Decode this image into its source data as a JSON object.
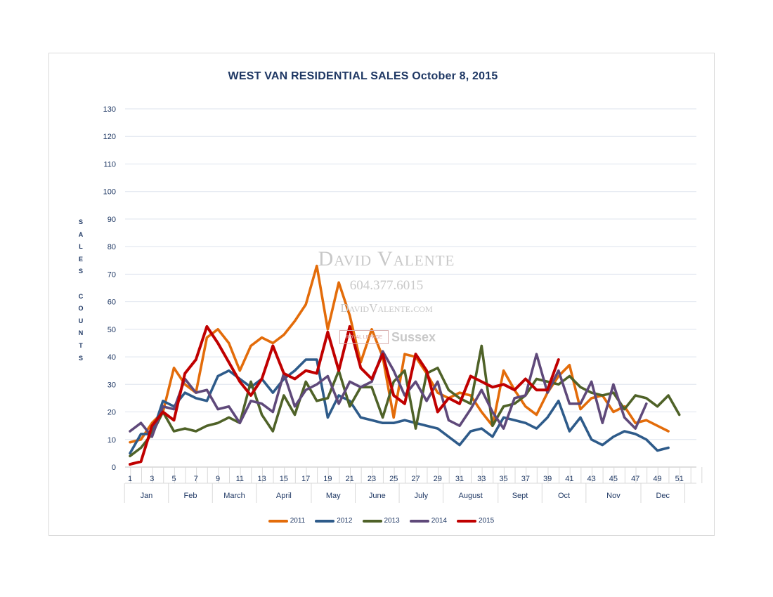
{
  "chart_data": {
    "type": "line",
    "title": "WEST VAN RESIDENTIAL  SALES  October 8, 2015",
    "ylabel_letters": [
      "S",
      "A",
      "L",
      "E",
      "S",
      "",
      "C",
      "O",
      "U",
      "N",
      "T",
      "S"
    ],
    "ylim": [
      0,
      130
    ],
    "y_ticks": [
      0,
      10,
      20,
      30,
      40,
      50,
      60,
      70,
      80,
      90,
      100,
      110,
      120,
      130
    ],
    "x_min": 1,
    "x_max": 53,
    "x_tick_labels": [
      "1",
      "3",
      "5",
      "7",
      "9",
      "11",
      "13",
      "15",
      "17",
      "19",
      "21",
      "23",
      "25",
      "27",
      "29",
      "31",
      "33",
      "35",
      "37",
      "39",
      "41",
      "43",
      "45",
      "47",
      "49",
      "51"
    ],
    "months": [
      {
        "label": "Jan",
        "start": 0.5,
        "end": 4.5
      },
      {
        "label": "Feb",
        "start": 4.5,
        "end": 8.5
      },
      {
        "label": "March",
        "start": 8.5,
        "end": 12.5
      },
      {
        "label": "April",
        "start": 12.5,
        "end": 17.5
      },
      {
        "label": "May",
        "start": 17.5,
        "end": 21.5
      },
      {
        "label": "June",
        "start": 21.5,
        "end": 25.5
      },
      {
        "label": "July",
        "start": 25.5,
        "end": 29.5
      },
      {
        "label": "August",
        "start": 29.5,
        "end": 34.5
      },
      {
        "label": "Sept",
        "start": 34.5,
        "end": 38.5
      },
      {
        "label": "Oct",
        "start": 38.5,
        "end": 42.5
      },
      {
        "label": "Nov",
        "start": 42.5,
        "end": 47.5
      },
      {
        "label": "Dec",
        "start": 47.5,
        "end": 51.5
      }
    ],
    "series": [
      {
        "name": "2011",
        "color": "#e36c0a",
        "values": [
          9,
          10,
          16,
          20,
          36,
          30,
          27,
          47,
          50,
          45,
          35,
          44,
          47,
          45,
          48,
          53,
          59,
          73,
          50,
          67,
          55,
          38,
          50,
          40,
          18,
          41,
          40,
          34,
          27,
          25,
          27,
          26,
          20,
          15,
          35,
          28,
          22,
          19,
          27,
          33,
          37,
          21,
          25,
          26,
          20,
          22,
          16,
          17,
          15,
          13
        ]
      },
      {
        "name": "2012",
        "color": "#2e5b8a",
        "values": [
          5,
          12,
          12,
          24,
          22,
          27,
          25,
          24,
          33,
          35,
          32,
          29,
          32,
          27,
          32,
          35,
          39,
          39,
          18,
          26,
          24,
          18,
          17,
          16,
          16,
          17,
          16,
          15,
          14,
          11,
          8,
          13,
          14,
          11,
          18,
          17,
          16,
          14,
          18,
          24,
          13,
          18,
          10,
          8,
          11,
          13,
          12,
          10,
          6,
          7
        ]
      },
      {
        "name": "2013",
        "color": "#4f6228",
        "values": [
          4,
          7,
          12,
          20,
          13,
          14,
          13,
          15,
          16,
          18,
          16,
          31,
          19,
          13,
          26,
          19,
          31,
          24,
          25,
          35,
          22,
          29,
          29,
          18,
          31,
          35,
          14,
          34,
          36,
          28,
          25,
          23,
          44,
          15,
          22,
          23,
          26,
          32,
          31,
          30,
          33,
          29,
          27,
          26,
          27,
          21,
          26,
          25,
          22,
          26,
          19
        ]
      },
      {
        "name": "2014",
        "color": "#5f497a",
        "values": [
          13,
          16,
          11,
          22,
          21,
          32,
          27,
          28,
          21,
          22,
          16,
          24,
          23,
          20,
          34,
          22,
          28,
          30,
          33,
          23,
          31,
          29,
          31,
          42,
          35,
          26,
          31,
          24,
          31,
          17,
          15,
          21,
          28,
          20,
          14,
          25,
          26,
          41,
          27,
          35,
          23,
          23,
          31,
          16,
          30,
          18,
          14,
          23
        ]
      },
      {
        "name": "2015",
        "color": "#c00000",
        "values": [
          1,
          2,
          15,
          20,
          17,
          34,
          39,
          51,
          45,
          38,
          31,
          26,
          32,
          44,
          34,
          32,
          35,
          34,
          49,
          35,
          51,
          36,
          32,
          41,
          26,
          23,
          41,
          35,
          20,
          25,
          23,
          33,
          31,
          29,
          30,
          28,
          32,
          28,
          28,
          39
        ]
      }
    ]
  },
  "watermark": {
    "name": "David Valente",
    "phone": "604.377.6015",
    "website": "DavidValente.com",
    "logo_text": "ROYAL LEPAGE",
    "brand": "Sussex"
  }
}
